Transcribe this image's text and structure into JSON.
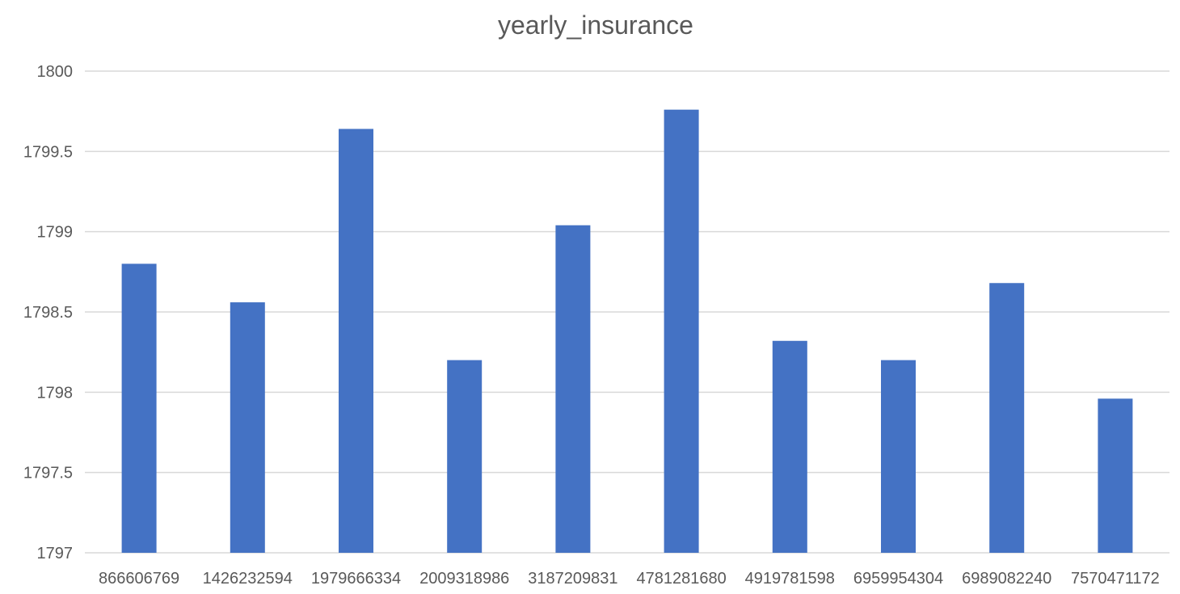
{
  "chart_data": {
    "type": "bar",
    "title": "yearly_insurance",
    "xlabel": "",
    "ylabel": "",
    "categories": [
      "866606769",
      "1426232594",
      "1979666334",
      "2009318986",
      "3187209831",
      "4781281680",
      "4919781598",
      "6959954304",
      "6989082240",
      "7570471172"
    ],
    "values": [
      1798.8,
      1798.56,
      1799.64,
      1798.2,
      1799.04,
      1799.76,
      1798.32,
      1798.2,
      1798.68,
      1797.96
    ],
    "ylim": [
      1797,
      1800
    ],
    "yticks": [
      1797,
      1797.5,
      1798,
      1798.5,
      1799,
      1799.5,
      1800
    ],
    "grid": true,
    "legend": "none",
    "colors": {
      "bar": "#4472C4",
      "grid": "#D9D9D9",
      "text": "#595959"
    }
  }
}
